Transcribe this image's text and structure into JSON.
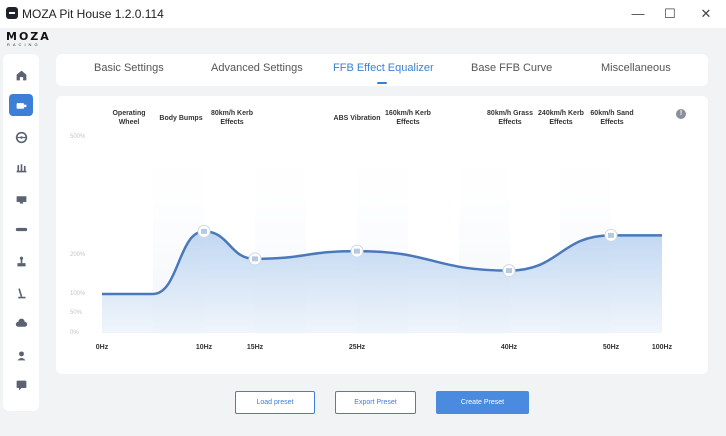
{
  "app": {
    "title": "MOZA Pit House 1.2.0.114",
    "logo": "MOZA",
    "logo_sub": "RACING",
    "window_controls": {
      "minimize": "—",
      "maximize": "☐",
      "close": "✕"
    }
  },
  "sidebar": {
    "items": [
      {
        "icon": "home-icon",
        "active": false
      },
      {
        "icon": "base-icon",
        "active": true
      },
      {
        "icon": "steering-wheel-icon",
        "active": false
      },
      {
        "icon": "pedals-icon",
        "active": false
      },
      {
        "icon": "dashboard-icon",
        "active": false
      },
      {
        "icon": "handbrake-icon",
        "active": false
      },
      {
        "icon": "shifter-icon",
        "active": false
      },
      {
        "icon": "stick-icon",
        "active": false
      },
      {
        "icon": "cloud-icon",
        "active": false
      },
      {
        "icon": "profile-icon",
        "active": false
      },
      {
        "icon": "chat-icon",
        "active": false
      }
    ]
  },
  "tabs": [
    {
      "label": "Basic Settings",
      "active": false
    },
    {
      "label": "Advanced Settings",
      "active": false
    },
    {
      "label": "FFB Effect Equalizer",
      "active": true
    },
    {
      "label": "Base FFB Curve",
      "active": false
    },
    {
      "label": "Miscellaneous",
      "active": false
    }
  ],
  "equalizer": {
    "effect_labels": [
      "Operating\nWheel",
      "Body Bumps",
      "80km/h Kerb\nEffects",
      "ABS Vibration",
      "160km/h Kerb\nEffects",
      "80km/h Grass\nEffects",
      "240km/h Kerb\nEffects",
      "60km/h Sand\nEffects"
    ],
    "info_icon": "!",
    "y_tick_labels": [
      "500%",
      "200%",
      "100%",
      "50%",
      "0%"
    ],
    "x_tick_labels": [
      "0Hz",
      "10Hz",
      "15Hz",
      "25Hz",
      "40Hz",
      "50Hz",
      "100Hz"
    ]
  },
  "chart_data": {
    "type": "area",
    "x": [
      "0Hz",
      "10Hz",
      "15Hz",
      "25Hz",
      "40Hz",
      "50Hz",
      "100Hz"
    ],
    "values_percent": [
      100,
      260,
      190,
      210,
      160,
      250,
      250
    ],
    "handles_at": [
      "10Hz",
      "15Hz",
      "25Hz",
      "40Hz",
      "50Hz"
    ],
    "line_color": "#4a78b8",
    "fill_color": "#c4daf3"
  },
  "actions": {
    "load": "Load preset",
    "export": "Export Preset",
    "create": "Create Preset"
  },
  "colors": {
    "accent": "#3d7fd6",
    "sidebar_active": "#3d7fd6"
  }
}
